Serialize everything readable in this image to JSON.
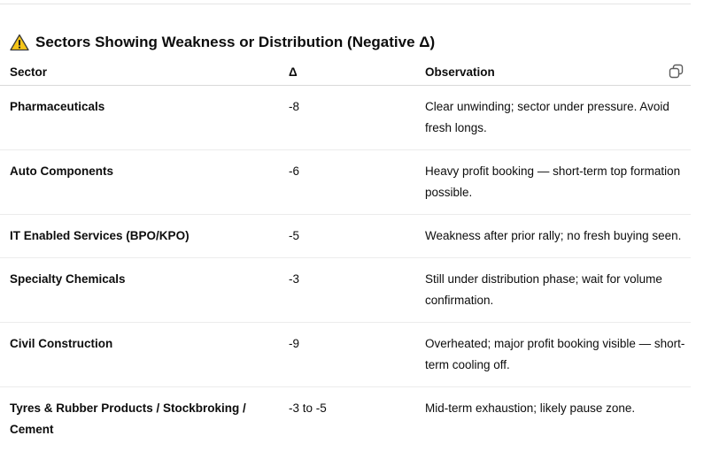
{
  "section": {
    "title": "Sectors Showing Weakness or Distribution (Negative Δ)",
    "icon": "warning-icon"
  },
  "table": {
    "headers": {
      "sector": "Sector",
      "delta": "Δ",
      "observation": "Observation"
    },
    "rows": [
      {
        "sector": "Pharmaceuticals",
        "delta": "-8",
        "observation": "Clear unwinding; sector under pressure. Avoid fresh longs."
      },
      {
        "sector": "Auto Components",
        "delta": "-6",
        "observation": "Heavy profit booking — short-term top formation possible."
      },
      {
        "sector": "IT Enabled Services (BPO/KPO)",
        "delta": "-5",
        "observation": "Weakness after prior rally; no fresh buying seen."
      },
      {
        "sector": "Specialty Chemicals",
        "delta": "-3",
        "observation": "Still under distribution phase; wait for volume confirmation."
      },
      {
        "sector": "Civil Construction",
        "delta": "-9",
        "observation": "Overheated; major profit booking visible — short-term cooling off."
      },
      {
        "sector": "Tyres & Rubber Products / Stockbroking / Cement",
        "delta": "-3 to -5",
        "observation": "Mid-term exhaustion; likely pause zone."
      }
    ]
  },
  "icons": {
    "copy": "copy-icon",
    "warning": "warning-icon"
  },
  "colors": {
    "warning_fill": "#f5c518",
    "text": "#0d0d0d",
    "divider": "#ececec"
  }
}
